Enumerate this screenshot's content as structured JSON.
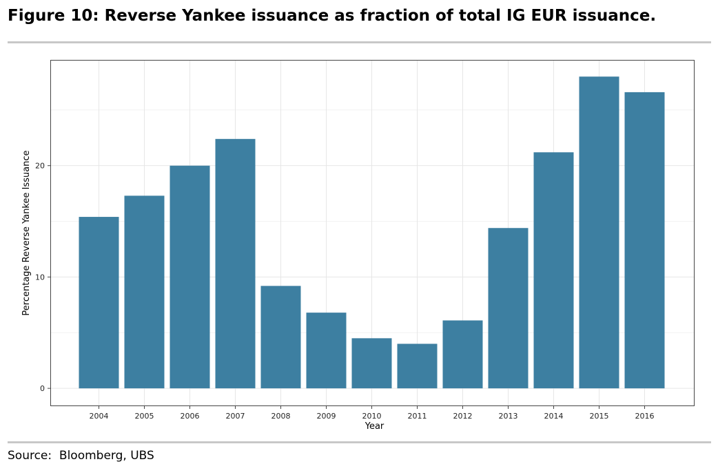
{
  "title": "Figure 10: Reverse Yankee issuance as fraction of total IG EUR issuance.",
  "source": "Source:  Bloomberg, UBS",
  "chart_data": {
    "type": "bar",
    "categories": [
      "2004",
      "2005",
      "2006",
      "2007",
      "2008",
      "2009",
      "2010",
      "2011",
      "2012",
      "2013",
      "2014",
      "2015",
      "2016"
    ],
    "values": [
      15.4,
      17.3,
      20.0,
      22.4,
      9.2,
      6.8,
      4.5,
      4.0,
      6.1,
      14.4,
      21.2,
      28.0,
      26.6
    ],
    "xlabel": "Year",
    "ylabel": "Percentage Reverse Yankee Issuance",
    "yticks": [
      0,
      10,
      20
    ],
    "ylim": [
      -1.6,
      29.5
    ],
    "grid": true,
    "bar_color": "#3d7fa1",
    "grid_color": "#e6e6e6",
    "panel_border_color": "#444444"
  }
}
